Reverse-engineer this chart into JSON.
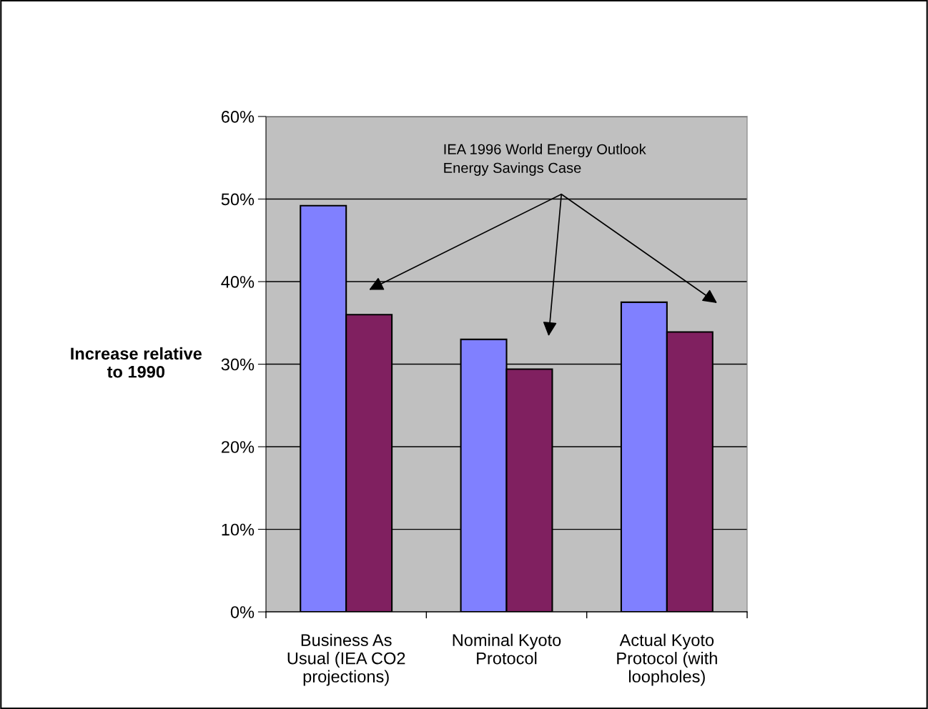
{
  "chart_data": {
    "type": "bar",
    "ylabel": "Increase relative\nto 1990",
    "categories": [
      "Business As\nUsual (IEA CO2\nprojections)",
      "Nominal Kyoto\nProtocol",
      "Actual Kyoto\nProtocol (with\nloopholes)"
    ],
    "series": [
      {
        "color": "#8080ff",
        "values": [
          49.2,
          33.0,
          37.5
        ]
      },
      {
        "color": "#802060",
        "values": [
          36.0,
          29.4,
          33.9
        ]
      }
    ],
    "ylim": [
      0,
      60
    ],
    "yticks": [
      {
        "value": 0,
        "label": "0%"
      },
      {
        "value": 10,
        "label": "10%"
      },
      {
        "value": 20,
        "label": "20%"
      },
      {
        "value": 30,
        "label": "30%"
      },
      {
        "value": 40,
        "label": "40%"
      },
      {
        "value": 50,
        "label": "50%"
      },
      {
        "value": 60,
        "label": "60%"
      }
    ],
    "grid": "y",
    "legend": false,
    "annotations": [
      "IEA 1996 World Energy Outlook\nEnergy Savings Case"
    ]
  }
}
